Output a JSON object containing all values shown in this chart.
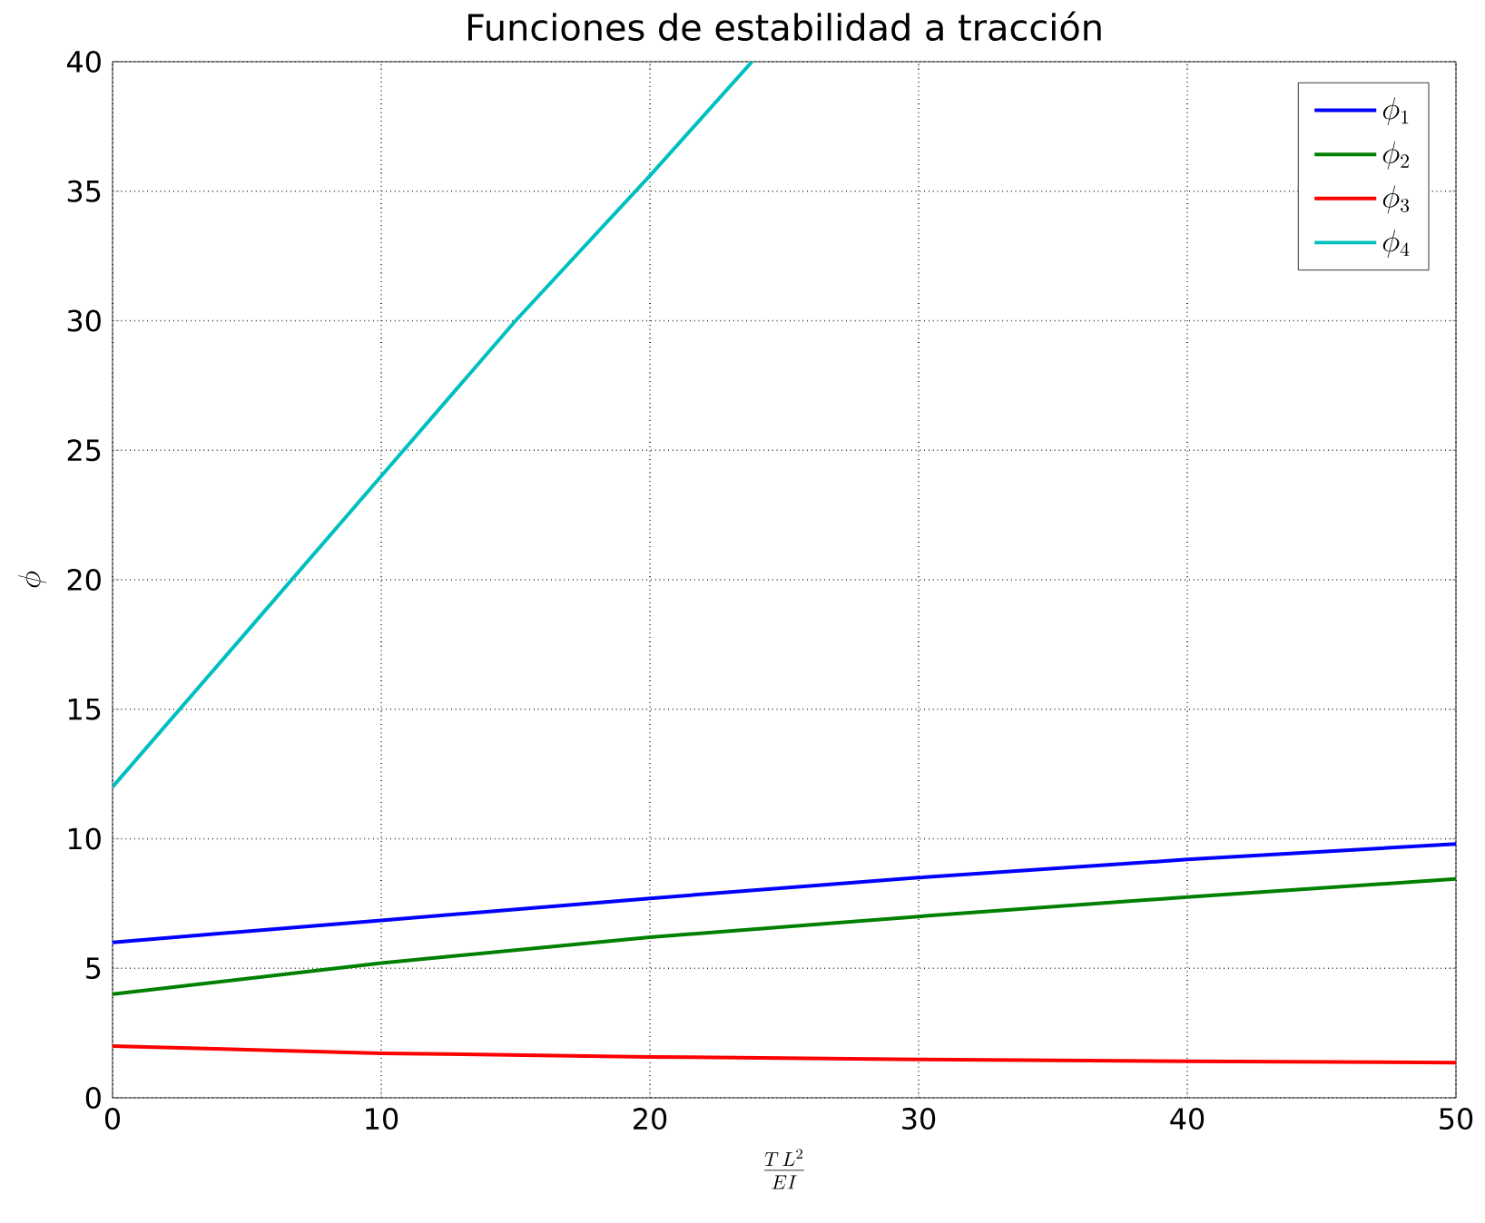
{
  "chart_data": {
    "type": "line",
    "title": "Funciones de estabilidad a tracción",
    "xlabel": "\\frac{T\\,L^2}{EI}",
    "ylabel": "\\phi",
    "xlim": [
      0,
      50
    ],
    "ylim": [
      0,
      40
    ],
    "xticks": [
      0,
      10,
      20,
      30,
      40,
      50
    ],
    "yticks": [
      0,
      5,
      10,
      15,
      20,
      25,
      30,
      35,
      40
    ],
    "grid": true,
    "legend": "top right",
    "marker": "none",
    "line_style": "solid",
    "series": [
      {
        "name": "\\phi_1",
        "color": "#0000ff",
        "x": [
          0,
          10,
          20,
          30,
          40,
          50
        ],
        "values": [
          6,
          6.85,
          7.7,
          8.5,
          9.2,
          9.8
        ]
      },
      {
        "name": "\\phi_2",
        "color": "#008000",
        "x": [
          0,
          10,
          20,
          30,
          40,
          50
        ],
        "values": [
          4,
          5.2,
          6.2,
          7.0,
          7.75,
          8.45
        ]
      },
      {
        "name": "\\phi_3",
        "color": "#ff0000",
        "x": [
          0,
          10,
          20,
          30,
          40,
          50
        ],
        "values": [
          2,
          1.72,
          1.58,
          1.48,
          1.41,
          1.36
        ]
      },
      {
        "name": "\\phi_4",
        "color": "#00bfbf",
        "x": [
          0,
          5,
          10,
          15,
          20,
          23.8
        ],
        "values": [
          12,
          18,
          24,
          30,
          35.6,
          40
        ]
      }
    ]
  }
}
